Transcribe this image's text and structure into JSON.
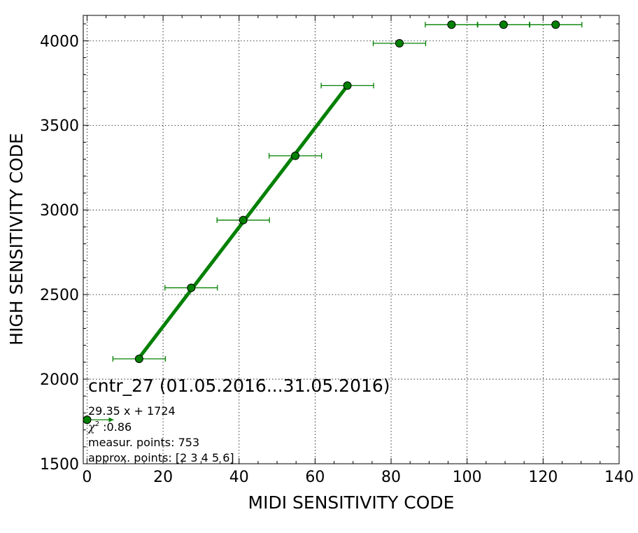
{
  "chart_data": {
    "type": "scatter",
    "title": "",
    "xlabel": "MIDI SENSITIVITY CODE",
    "ylabel": "HIGH SENSITIVITY CODE",
    "xlim": [
      -1,
      140
    ],
    "ylim": [
      1500,
      4150
    ],
    "x_ticks": [
      0,
      20,
      40,
      60,
      80,
      100,
      120,
      140
    ],
    "y_ticks": [
      1500,
      2000,
      2500,
      3000,
      3500,
      4000
    ],
    "x_tick_labels": [
      "0",
      "20",
      "40",
      "60",
      "80",
      "100",
      "120",
      "140"
    ],
    "y_tick_labels": [
      "1500",
      "2000",
      "2500",
      "3000",
      "3500",
      "4000"
    ],
    "grid": true,
    "colors": {
      "series": "#008000",
      "marker_edge": "#000000"
    },
    "series": [
      {
        "marker": "circle",
        "points": [
          {
            "x": 0,
            "y": 1760,
            "xerr_plus": 7,
            "xerr_minus": 0
          },
          {
            "x": 13.7,
            "y": 2120,
            "xerr_plus": 6.9,
            "xerr_minus": 6.9
          },
          {
            "x": 27.4,
            "y": 2540,
            "xerr_plus": 6.9,
            "xerr_minus": 6.9
          },
          {
            "x": 41.1,
            "y": 2940,
            "xerr_plus": 6.9,
            "xerr_minus": 6.9
          },
          {
            "x": 54.8,
            "y": 3320,
            "xerr_plus": 6.9,
            "xerr_minus": 6.9
          },
          {
            "x": 68.5,
            "y": 3735,
            "xerr_plus": 6.9,
            "xerr_minus": 6.9
          },
          {
            "x": 82.2,
            "y": 3985,
            "xerr_plus": 6.9,
            "xerr_minus": 6.9
          },
          {
            "x": 95.9,
            "y": 4095,
            "xerr_plus": 6.9,
            "xerr_minus": 6.9
          },
          {
            "x": 109.6,
            "y": 4095,
            "xerr_plus": 6.9,
            "xerr_minus": 6.9
          },
          {
            "x": 123.3,
            "y": 4095,
            "xerr_plus": 6.9,
            "xerr_minus": 6.9
          }
        ]
      },
      {
        "type": "line",
        "fit": {
          "slope": 29.35,
          "intercept": 1724
        },
        "x_range": [
          13.7,
          68.5
        ]
      }
    ],
    "annotations": {
      "title": "cntr_27 (01.05.2016...31.05.2016)",
      "fit_label": "29.35 x + 1724",
      "chi_symbol": "χ",
      "chi_power": "2",
      "chi_value": " :0.86",
      "measur_points": "measur. points: 753",
      "approx_points": "approx. points: [2 3 4 5 6]"
    }
  }
}
